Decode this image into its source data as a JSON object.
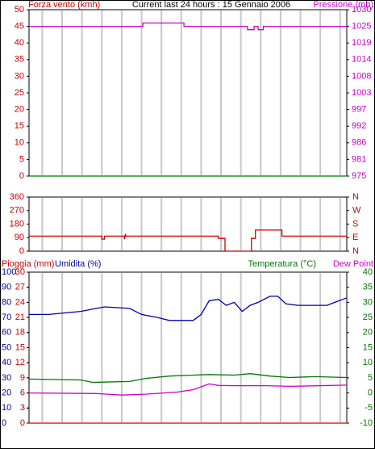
{
  "chart_data": [
    {
      "type": "line",
      "title": "Current last 24 hours : 15 Gennaio 2006",
      "xlim": [
        0,
        24
      ],
      "xticks": [
        1,
        2.5,
        4,
        5.5,
        7,
        8.5,
        10,
        11.5,
        13,
        14.5,
        16,
        17.5,
        19,
        20.5,
        22,
        23.5
      ],
      "grid": true,
      "axes": [
        {
          "label": "Forza vento (kmh)",
          "color": "#cc0000",
          "side": "left",
          "lim": [
            0,
            50
          ],
          "ticks": [
            0,
            5,
            10,
            15,
            20,
            25,
            30,
            35,
            40,
            45,
            50
          ]
        },
        {
          "label": "Pressione (mb)",
          "color": "#cc00cc",
          "side": "right",
          "lim": [
            975,
            1030
          ],
          "ticks": [
            975,
            {
              "value": 980.5,
              "label": "981"
            },
            986,
            {
              "value": 991.5,
              "label": "992"
            },
            997,
            {
              "value": 1002.5,
              "label": "1003"
            },
            1008,
            {
              "value": 1013.5,
              "label": "1014"
            },
            1019,
            {
              "value": 1024.5,
              "label": "1025"
            },
            1030
          ]
        }
      ],
      "series": [
        {
          "axis": 0,
          "color": "#007700",
          "x": [
            0,
            24
          ],
          "values": [
            0,
            0
          ]
        },
        {
          "axis": 1,
          "color": "#cc00cc",
          "x": [
            0,
            8.6,
            8.6,
            11.7,
            11.7,
            16.5,
            16.5,
            17.0,
            17.0,
            17.3,
            17.3,
            17.7,
            17.7,
            24
          ],
          "values": [
            1024.5,
            1024.5,
            1025.6,
            1025.6,
            1024.5,
            1024.5,
            1023.4,
            1023.4,
            1024.5,
            1024.5,
            1023.4,
            1023.4,
            1024.5,
            1024.5
          ]
        }
      ]
    },
    {
      "type": "line",
      "xlim": [
        0,
        24
      ],
      "xticks": [
        1,
        2.5,
        4,
        5.5,
        7,
        8.5,
        10,
        11.5,
        13,
        14.5,
        16,
        17.5,
        19,
        20.5,
        22,
        23.5
      ],
      "grid": true,
      "axes": [
        {
          "color": "#cc0000",
          "side": "left",
          "lim": [
            0,
            360
          ],
          "ticks": [
            0,
            90,
            180,
            270,
            360
          ]
        },
        {
          "color": "#cc0000",
          "side": "right",
          "lim": [
            0,
            360
          ],
          "ticks": [
            {
              "value": 0,
              "label": "N"
            },
            {
              "value": 90,
              "label": "E"
            },
            {
              "value": 180,
              "label": "S"
            },
            {
              "value": 270,
              "label": "W"
            },
            {
              "value": 360,
              "label": "N"
            }
          ]
        }
      ],
      "series": [
        {
          "axis": 0,
          "color": "#cc0000",
          "x": [
            0,
            5.5,
            5.5,
            5.7,
            5.7,
            7.2,
            7.2,
            7.3,
            7.3,
            14.3,
            14.3,
            14.8,
            14.8,
            16.8,
            16.8,
            17.1,
            17.1,
            19.1,
            19.1,
            24
          ],
          "values": [
            100,
            100,
            80,
            80,
            100,
            100,
            80,
            115,
            100,
            100,
            85,
            85,
            0,
            0,
            85,
            85,
            140,
            140,
            100,
            100
          ]
        }
      ]
    },
    {
      "type": "line",
      "xlim": [
        0,
        24
      ],
      "xticks": [
        1,
        2.5,
        4,
        5.5,
        7,
        8.5,
        10,
        11.5,
        13,
        14.5,
        16,
        17.5,
        19,
        20.5,
        22,
        23.5
      ],
      "grid": true,
      "axes": [
        {
          "label": "Pioggia (mm)",
          "color": "#cc0000",
          "side": "left",
          "lim": [
            0,
            30
          ],
          "ticks": [
            0,
            3,
            6,
            9,
            12,
            15,
            18,
            21,
            24,
            27,
            30
          ]
        },
        {
          "label": "Umidita (%)",
          "color": "#0000aa",
          "side": "left",
          "lim": [
            0,
            100
          ],
          "ticks": [
            0,
            10,
            20,
            30,
            40,
            50,
            60,
            70,
            80,
            90,
            100
          ]
        },
        {
          "label": "Temperatura (°C)",
          "color": "#007700",
          "side": "right",
          "lim": [
            -10,
            40
          ],
          "ticks": [
            -10,
            -5,
            0,
            5,
            10,
            15,
            20,
            25,
            30,
            35,
            40
          ]
        }
      ],
      "series": [
        {
          "axis": 0,
          "color": "#cc0000",
          "x": [
            0,
            24
          ],
          "values": [
            0,
            0
          ]
        },
        {
          "axis": 1,
          "color": "#0000aa",
          "x": [
            0,
            1.5,
            2.7,
            3.9,
            5.1,
            5.7,
            7.6,
            8.5,
            9.7,
            10.6,
            11.5,
            12.4,
            13.0,
            13.6,
            14.3,
            14.9,
            15.5,
            16.1,
            16.7,
            17.3,
            18.2,
            18.8,
            19.4,
            20.3,
            21.6,
            22.5,
            23.1,
            23.7,
            24
          ],
          "values": [
            72,
            72,
            73,
            74,
            76,
            77,
            76,
            72,
            70,
            68,
            68,
            68,
            72,
            81,
            82,
            78,
            80,
            74,
            78,
            80,
            84,
            84,
            79,
            78,
            78,
            78,
            80,
            82,
            83
          ]
        },
        {
          "axis": 2,
          "color": "#007700",
          "x": [
            0,
            3.9,
            4.8,
            7.6,
            8.8,
            10.6,
            12.4,
            13.6,
            15.5,
            16.7,
            18.2,
            19.7,
            21.6,
            24
          ],
          "values": [
            4.6,
            4.3,
            3.5,
            3.8,
            4.8,
            5.6,
            5.9,
            6.1,
            5.9,
            6.4,
            5.6,
            5.1,
            5.4,
            5.1
          ]
        },
        {
          "axis": 2,
          "name": "Dew Point",
          "color": "#cc00cc",
          "x": [
            0,
            5.1,
            7.0,
            8.8,
            11.2,
            12.4,
            13.6,
            14.3,
            15.5,
            17.9,
            19.7,
            24
          ],
          "values": [
            0,
            -0.2,
            -0.7,
            -0.4,
            0.3,
            1.1,
            3.0,
            2.5,
            2.4,
            2.4,
            2.2,
            2.6
          ]
        }
      ]
    }
  ]
}
